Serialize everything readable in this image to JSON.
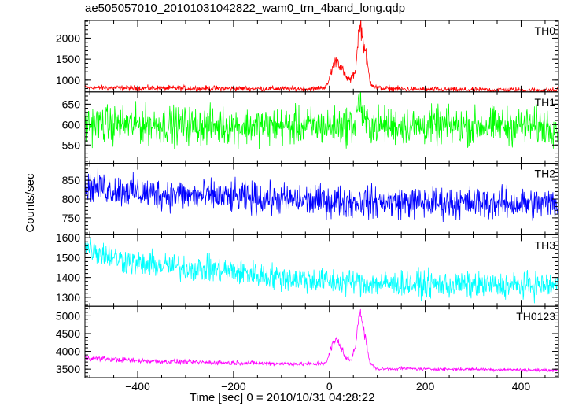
{
  "chart_data": {
    "type": "line",
    "title": "ae505057010_20101031042822_wam0_trn_4band_long.qdp",
    "xlabel": "Time [sec] 0 = 2010/10/31 04:28:22",
    "ylabel": "Counts/sec",
    "xlim": [
      -510,
      478
    ],
    "xticks": [
      -400,
      -200,
      0,
      200,
      400
    ],
    "grid": false,
    "panels": [
      {
        "name": "TH0",
        "color": "#ff0000",
        "ylim": [
          720,
          2420
        ],
        "yticks": [
          1000,
          1500,
          2000
        ],
        "series": [
          {
            "x": [
              -510,
              -400,
              -300,
              -200,
              -100,
              -30,
              -5,
              5,
              15,
              25,
              35,
              45,
              55,
              60,
              65,
              70,
              75,
              85,
              100,
              150,
              200,
              300,
              400,
              478
            ],
            "y": [
              820,
              810,
              805,
              800,
              795,
              790,
              850,
              1250,
              1500,
              1300,
              1050,
              1000,
              1250,
              2050,
              2350,
              1950,
              1700,
              950,
              810,
              790,
              780,
              770,
              765,
              760
            ]
          }
        ]
      },
      {
        "name": "TH1",
        "color": "#00ff00",
        "ylim": [
          505,
          680
        ],
        "yticks": [
          550,
          600,
          650
        ],
        "series": [
          {
            "x": [
              -510,
              -400,
              -300,
              -200,
              -100,
              0,
              55,
              60,
              65,
              70,
              75,
              100,
              200,
              300,
              400,
              478
            ],
            "y": [
              600,
              600,
              598,
              597,
              596,
              596,
              600,
              655,
              660,
              610,
              600,
              598,
              597,
              596,
              596,
              596
            ]
          }
        ]
      },
      {
        "name": "TH2",
        "color": "#0000ff",
        "ylim": [
          705,
          895
        ],
        "yticks": [
          750,
          800,
          850
        ],
        "series": [
          {
            "x": [
              -510,
              -400,
              -300,
              -200,
              -100,
              0,
              100,
              200,
              300,
              400,
              478
            ],
            "y": [
              835,
              818,
              810,
              805,
              798,
              795,
              792,
              790,
              790,
              788,
              788
            ]
          }
        ]
      },
      {
        "name": "TH3",
        "color": "#00ffff",
        "ylim": [
          1255,
          1615
        ],
        "yticks": [
          1300,
          1400,
          1500,
          1600
        ],
        "series": [
          {
            "x": [
              -510,
              -450,
              -400,
              -300,
              -200,
              -100,
              0,
              100,
              200,
              300,
              400,
              478
            ],
            "y": [
              1560,
              1500,
              1470,
              1450,
              1430,
              1400,
              1380,
              1370,
              1365,
              1360,
              1360,
              1360
            ]
          }
        ]
      },
      {
        "name": "TH0123",
        "color": "#ff00ff",
        "ylim": [
          3260,
          5270
        ],
        "yticks": [
          3500,
          4000,
          4500,
          5000
        ],
        "series": [
          {
            "x": [
              -510,
              -400,
              -300,
              -200,
              -100,
              -30,
              -5,
              5,
              15,
              25,
              35,
              45,
              55,
              60,
              65,
              70,
              75,
              85,
              100,
              150,
              200,
              300,
              400,
              478
            ],
            "y": [
              3820,
              3740,
              3700,
              3680,
              3660,
              3640,
              3700,
              4150,
              4350,
              4100,
              3800,
              3750,
              4150,
              4950,
              5200,
              4700,
              4400,
              3650,
              3500,
              3520,
              3500,
              3500,
              3480,
              3470
            ]
          }
        ]
      }
    ]
  }
}
